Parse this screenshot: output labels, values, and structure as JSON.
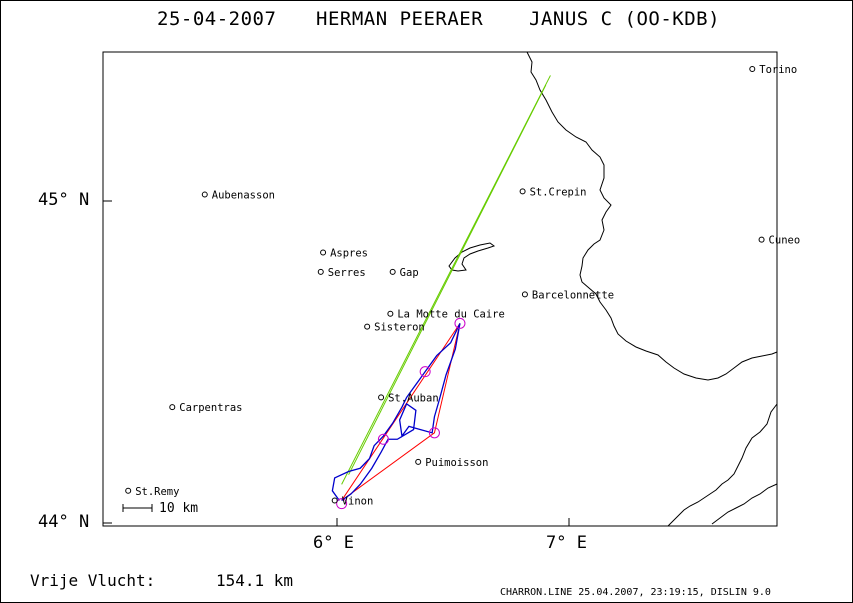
{
  "header": {
    "date": "25-04-2007",
    "pilot": "HERMAN PEERAER",
    "glider": "JANUS C (OO-KDB)"
  },
  "axes": {
    "lat_top": "45° N",
    "lat_bottom": "44° N",
    "lon_left": "6° E",
    "lon_right": "7° E"
  },
  "scale_label": "10 km",
  "places": [
    {
      "name": "Torino",
      "lon": 7.79,
      "lat": 45.41
    },
    {
      "name": "Aubenasson",
      "lon": 5.43,
      "lat": 45.02
    },
    {
      "name": "St.Crepin",
      "lon": 6.8,
      "lat": 45.03
    },
    {
      "name": "Cuneo",
      "lon": 7.83,
      "lat": 44.88
    },
    {
      "name": "Aspres",
      "lon": 5.94,
      "lat": 44.84
    },
    {
      "name": "Serres",
      "lon": 5.93,
      "lat": 44.78
    },
    {
      "name": "Gap",
      "lon": 6.24,
      "lat": 44.78
    },
    {
      "name": "Barcelonnette",
      "lon": 6.81,
      "lat": 44.71
    },
    {
      "name": "La Motte du Caire",
      "lon": 6.23,
      "lat": 44.65
    },
    {
      "name": "Sisteron",
      "lon": 6.13,
      "lat": 44.61
    },
    {
      "name": "St.Auban",
      "lon": 6.19,
      "lat": 44.39
    },
    {
      "name": "Carpentras",
      "lon": 5.29,
      "lat": 44.36
    },
    {
      "name": "Puimoisson",
      "lon": 6.35,
      "lat": 44.19
    },
    {
      "name": "St.Remy",
      "lon": 5.1,
      "lat": 44.1
    },
    {
      "name": "Vinon",
      "lon": 5.99,
      "lat": 44.07
    }
  ],
  "task_turnpoints": [
    {
      "lon": 6.02,
      "lat": 44.07
    },
    {
      "lon": 6.53,
      "lat": 44.62
    },
    {
      "lon": 6.42,
      "lat": 44.28
    },
    {
      "lon": 6.02,
      "lat": 44.07
    }
  ],
  "tp_markers": [
    {
      "lon": 6.53,
      "lat": 44.62
    },
    {
      "lon": 6.38,
      "lat": 44.47
    },
    {
      "lon": 6.42,
      "lat": 44.28
    },
    {
      "lon": 6.2,
      "lat": 44.26
    },
    {
      "lon": 6.02,
      "lat": 44.06
    }
  ],
  "colors": {
    "track": "#0000cc",
    "task": "#ff0000",
    "final_glide": "#66cc00",
    "markers": "#cc00cc",
    "border": "#000000"
  },
  "footer": {
    "distance_label": "Vrije Vlucht:",
    "distance_value": "154.1 km",
    "file_info": "CHARRON.LINE 25.04.2007, 23:19:15, DISLIN 9.0"
  }
}
